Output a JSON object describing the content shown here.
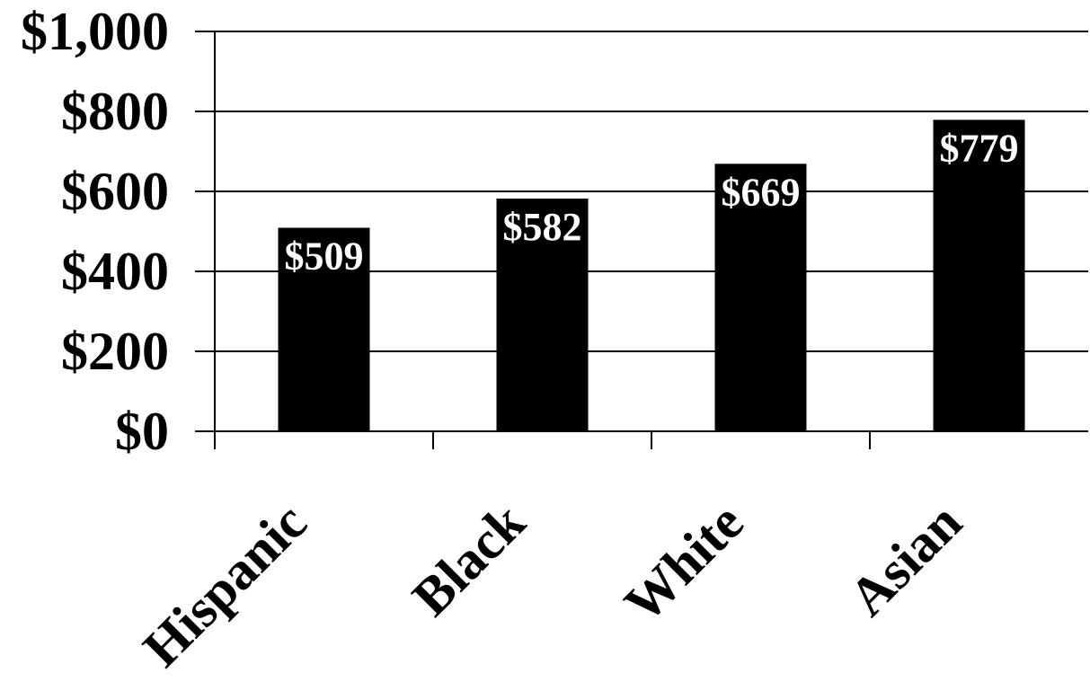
{
  "chart_data": {
    "type": "bar",
    "title": "",
    "xlabel": "",
    "ylabel": "",
    "categories": [
      "Hispanic",
      "Black",
      "White",
      "Asian"
    ],
    "values": [
      509,
      582,
      669,
      779
    ],
    "data_labels": [
      "$509",
      "$582",
      "$669",
      "$779"
    ],
    "ylim": [
      0,
      1000
    ],
    "yticks": [
      0,
      200,
      400,
      600,
      800,
      1000
    ],
    "ytick_labels": [
      "$0",
      "$200",
      "$400",
      "$600",
      "$800",
      "$1,000"
    ],
    "grid": "horizontal",
    "legend": "none",
    "colors": {
      "bar": "#000000",
      "data_label": "#ffffff",
      "grid": "#000000",
      "text": "#000000",
      "background": "#ffffff"
    }
  }
}
